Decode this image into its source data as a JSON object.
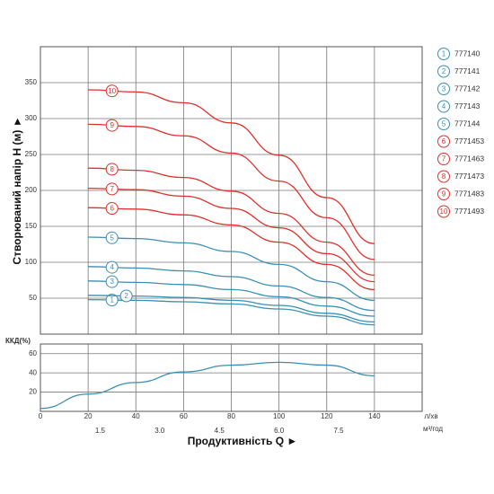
{
  "chart_data": [
    {
      "type": "line",
      "ylabel": "Створюваний напір Н (м) ►",
      "x": [
        20,
        40,
        60,
        80,
        100,
        120,
        140
      ],
      "xlim": [
        0,
        160
      ],
      "xticks": [
        20,
        40,
        60,
        80,
        100,
        120,
        140
      ],
      "show_xtick_labels": false,
      "ylim": [
        0,
        400
      ],
      "yticks": [
        50,
        100,
        150,
        200,
        250,
        300,
        350
      ],
      "grid": true,
      "series": [
        {
          "name": "777140",
          "label": "1",
          "color": "#3a8fb5",
          "values": [
            48,
            47,
            45,
            42,
            35,
            25,
            13
          ]
        },
        {
          "name": "777141",
          "label": "2",
          "color": "#3a8fb5",
          "values": [
            54,
            53,
            51,
            47,
            40,
            29,
            17
          ]
        },
        {
          "name": "777142",
          "label": "3",
          "color": "#3a8fb5",
          "values": [
            74,
            72,
            69,
            62,
            52,
            39,
            25
          ]
        },
        {
          "name": "777143",
          "label": "4",
          "color": "#3a8fb5",
          "values": [
            94,
            92,
            88,
            80,
            67,
            51,
            33
          ]
        },
        {
          "name": "777144",
          "label": "5",
          "color": "#3a8fb5",
          "values": [
            135,
            133,
            127,
            115,
            97,
            73,
            47
          ]
        },
        {
          "name": "7771453",
          "label": "6",
          "color": "#e0302a",
          "values": [
            176,
            174,
            166,
            152,
            128,
            97,
            62
          ]
        },
        {
          "name": "7771463",
          "label": "7",
          "color": "#e0302a",
          "values": [
            203,
            201,
            192,
            175,
            148,
            112,
            73
          ]
        },
        {
          "name": "7771473",
          "label": "8",
          "color": "#e0302a",
          "values": [
            231,
            228,
            218,
            199,
            168,
            128,
            82
          ]
        },
        {
          "name": "7771483",
          "label": "9",
          "color": "#e0302a",
          "values": [
            292,
            289,
            276,
            252,
            213,
            162,
            104
          ]
        },
        {
          "name": "7771493",
          "label": "10",
          "color": "#e0302a",
          "values": [
            340,
            337,
            322,
            294,
            249,
            190,
            126
          ]
        }
      ]
    },
    {
      "type": "line",
      "ylabel": "ККД(%)",
      "xlabel": "Продуктивність Q ►",
      "xunit": "л/хв",
      "x2unit": "м³/год",
      "x": [
        0,
        20,
        40,
        60,
        80,
        100,
        120,
        140
      ],
      "values": [
        3,
        18,
        30,
        41,
        48,
        51,
        48,
        37
      ],
      "color": "#3a8fb5",
      "xlim": [
        0,
        160
      ],
      "xticks": [
        0,
        20,
        40,
        60,
        80,
        100,
        120,
        140
      ],
      "x2factor": 16.667,
      "x2ticks": [
        1.5,
        {
          "value": 3,
          "label": "3.0"
        },
        4.5,
        {
          "value": 6,
          "label": "6.0"
        },
        7.5
      ],
      "ylim": [
        0,
        70
      ],
      "yticks": [
        20,
        40,
        60
      ],
      "grid": true
    }
  ]
}
